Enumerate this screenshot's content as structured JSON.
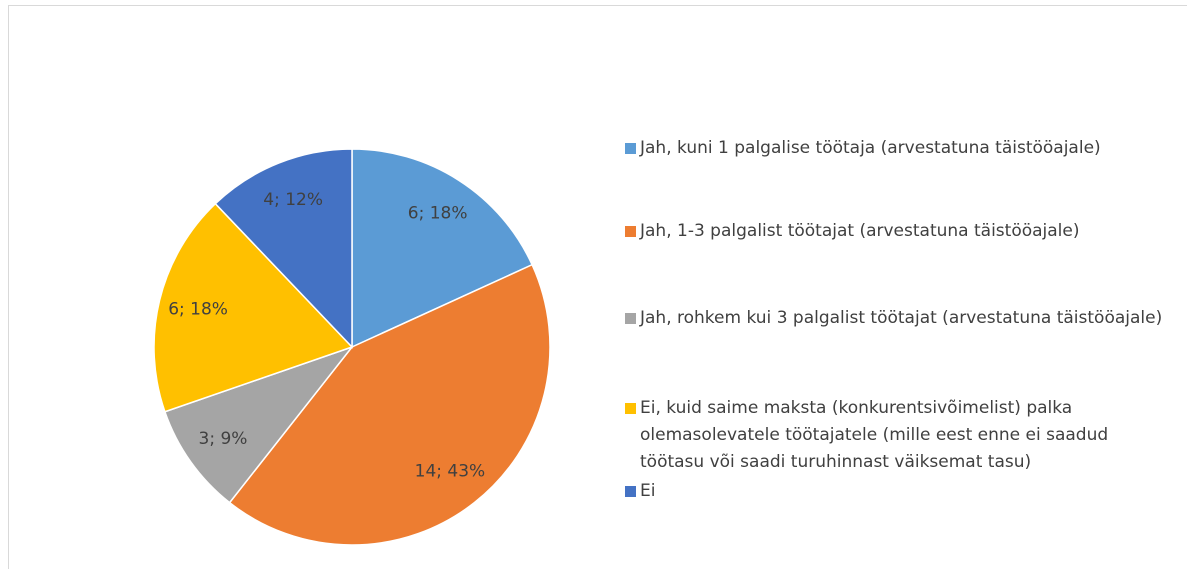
{
  "chart_data": {
    "type": "pie",
    "categories": [
      "Jah, kuni 1 palgalise töötaja (arvestatuna täistööajale)",
      "Jah, 1-3 palgalist töötajat (arvestatuna täistööajale)",
      "Jah, rohkem kui 3 palgalist töötajat (arvestatuna täistööajale)",
      "Ei, kuid saime maksta (konkurentsivõimelist) palka olemasolevatele töötajatele (mille eest enne ei saadud töötasu või saadi turuhinnast väiksemat tasu)",
      "Ei"
    ],
    "values": [
      6,
      14,
      3,
      6,
      4
    ],
    "value_labels": [
      "6; 18%",
      "14; 43%",
      "3; 9%",
      "6; 18%",
      "4; 12%"
    ],
    "colors": [
      "#5b9bd5",
      "#ed7d31",
      "#a5a5a5",
      "#ffc000",
      "#4472c4"
    ],
    "legend": "right"
  }
}
